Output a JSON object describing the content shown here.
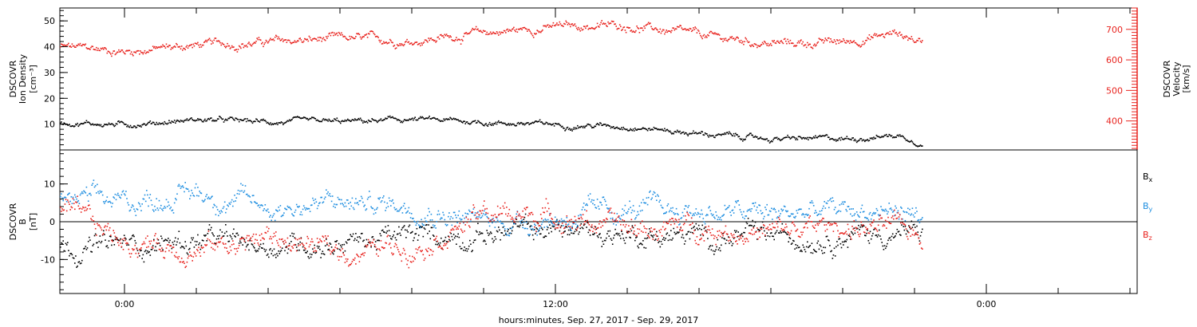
{
  "chart_data": [
    {
      "type": "scatter",
      "panel": "plasma",
      "ylabel_left": [
        "DSCOVR",
        "Ion Density",
        "[cm⁻³]"
      ],
      "ylabel_right": [
        "DSCOVR",
        "Velocity",
        "[km/s]"
      ],
      "ylim_left": [
        0,
        55
      ],
      "ylim_right": [
        305,
        770
      ],
      "yticks_left": [
        "10",
        "20",
        "30",
        "40",
        "50"
      ],
      "yticks_left_values": [
        10,
        20,
        30,
        40,
        50
      ],
      "yticks_right": [
        "400",
        "500",
        "600",
        "700"
      ],
      "yticks_right_values": [
        400,
        500,
        600,
        700
      ],
      "x": [
        -1.8,
        0,
        2,
        4,
        6,
        8,
        10,
        12,
        14,
        16,
        18,
        20,
        21.5,
        22.2
      ],
      "series": [
        {
          "axis": "right",
          "color": "#e8231e",
          "values": [
            645,
            630,
            650,
            660,
            670,
            665,
            690,
            710,
            715,
            680,
            655,
            660,
            690,
            660
          ]
        },
        {
          "axis": "left",
          "color": "#000000",
          "values": [
            11,
            10,
            12,
            11,
            11,
            12,
            11,
            10,
            9.5,
            6.5,
            4.5,
            4.5,
            6,
            3
          ]
        }
      ]
    },
    {
      "type": "scatter",
      "panel": "magnetic field",
      "ylabel_left": [
        "DSCOVR",
        "B",
        "[nT]"
      ],
      "ylim": [
        -19,
        19
      ],
      "yticks": [
        "10",
        "0",
        "-10"
      ],
      "yticks_values": [
        10,
        0,
        -10
      ],
      "zero_line": true,
      "x": [
        -1.8,
        0,
        2,
        4,
        6,
        8,
        10,
        12,
        14,
        16,
        18,
        20,
        21.5,
        22.2
      ],
      "series": [
        {
          "name": "B",
          "subscript": "x",
          "color": "#000000",
          "values": [
            -7,
            -6,
            -5,
            -6,
            -5,
            -4,
            -3,
            -2,
            -3,
            -4,
            -4,
            -3,
            -3,
            -3
          ]
        },
        {
          "name": "B",
          "subscript": "y",
          "color": "#1e8ee0",
          "values": [
            6,
            5,
            8,
            4,
            5,
            5,
            0,
            1,
            3,
            3,
            2,
            3,
            3,
            2
          ]
        },
        {
          "name": "B",
          "subscript": "z",
          "color": "#e8231e",
          "values": [
            3,
            -5,
            -7,
            -4,
            -8,
            -6,
            2,
            2,
            -2,
            -1,
            -3,
            -1,
            -2,
            -3
          ]
        }
      ]
    }
  ],
  "xaxis": {
    "label": "hours:minutes, Sep. 27, 2017 - Sep. 29, 2017",
    "ticks": [
      "0:00",
      "12:00",
      "0:00"
    ],
    "tick_hours": [
      0,
      12,
      24
    ],
    "xlim_hours": [
      -1.8,
      28.2
    ]
  }
}
